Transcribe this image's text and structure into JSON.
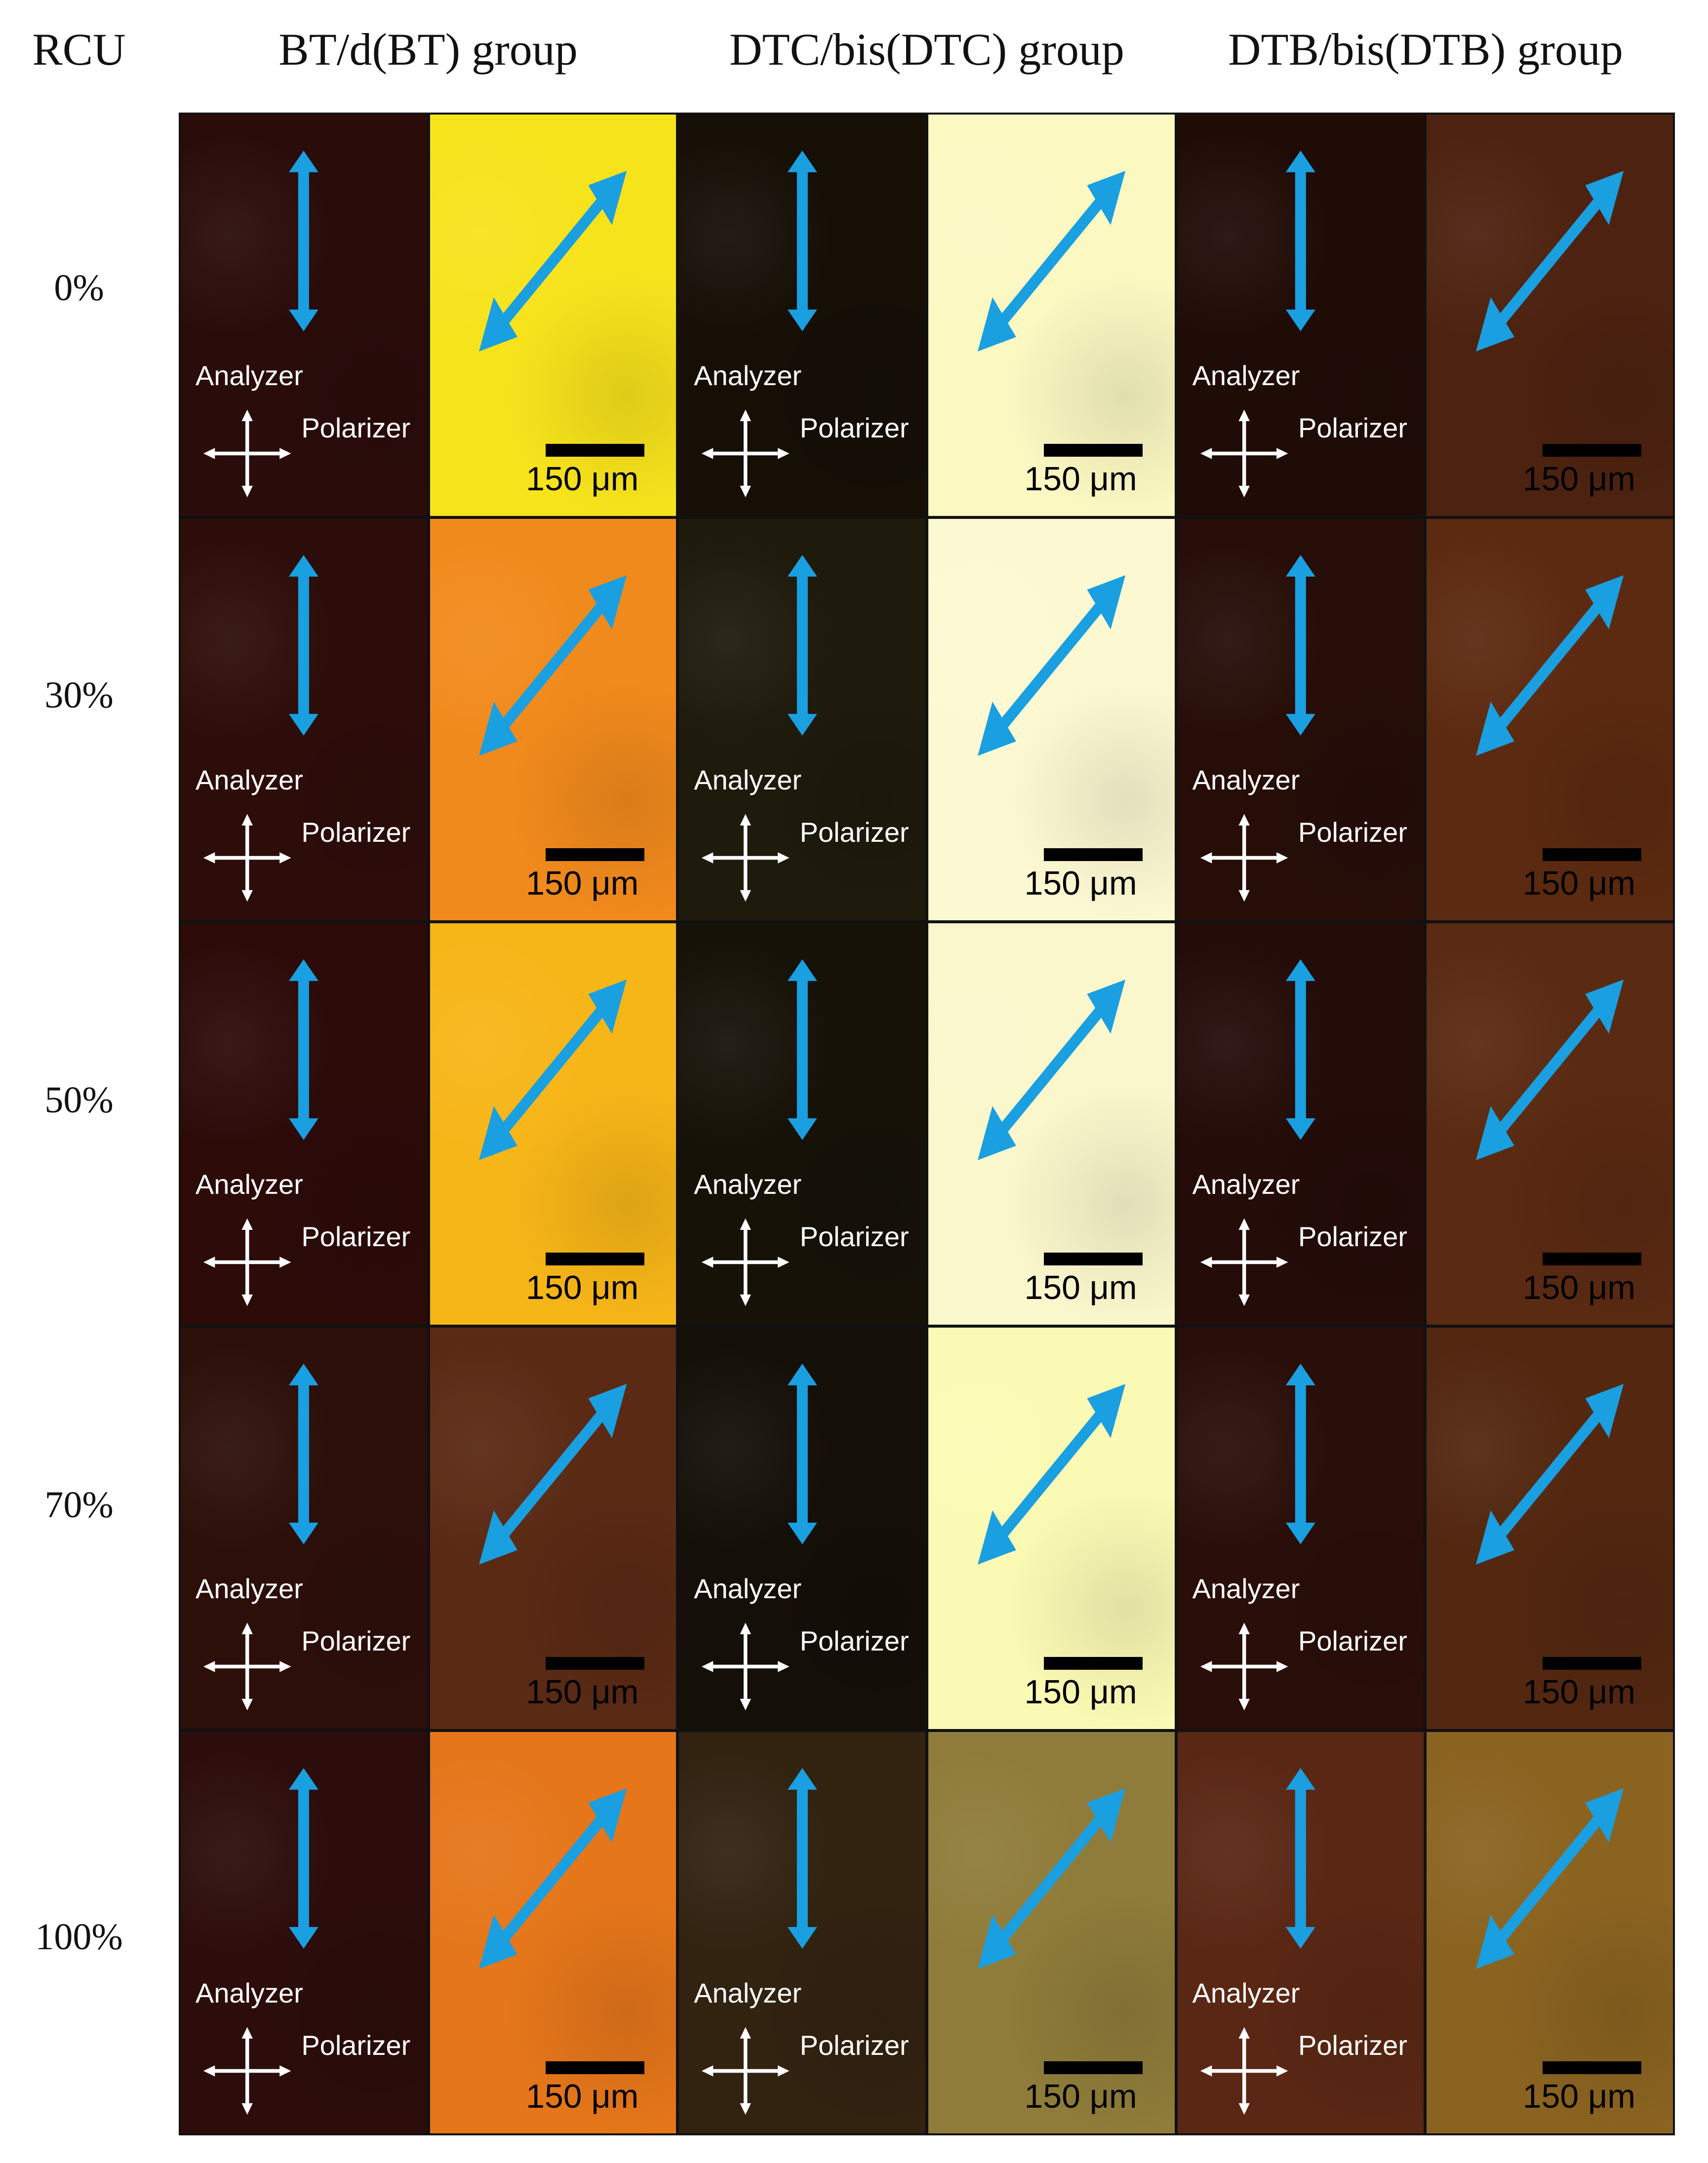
{
  "headers": {
    "rcu": "RCU",
    "groups": [
      "BT/d(BT) group",
      "DTC/bis(DTC) group",
      "DTB/bis(DTB) group"
    ]
  },
  "rows": [
    "0%",
    "30%",
    "50%",
    "70%",
    "100%"
  ],
  "panel_labels": {
    "analyzer": "Analyzer",
    "polarizer": "Polarizer",
    "scale": "150 μm"
  },
  "colors": {
    "arrow": "#1a9fe0",
    "cross": "#ffffff",
    "scalebar": "#000000"
  },
  "panels": [
    [
      {
        "crossed": "#2a0c0a",
        "parallel": "#f7e31c"
      },
      {
        "crossed": "#150f06",
        "parallel": "#fbf8c2"
      },
      {
        "crossed": "#200c07",
        "parallel": "#4d2210"
      }
    ],
    [
      {
        "crossed": "#2d0d0a",
        "parallel": "#f18a1c"
      },
      {
        "crossed": "#1e1a0c",
        "parallel": "#fcf9d2"
      },
      {
        "crossed": "#260d08",
        "parallel": "#5c2a10"
      }
    ],
    [
      {
        "crossed": "#2c0b09",
        "parallel": "#f7b618"
      },
      {
        "crossed": "#161208",
        "parallel": "#fbf7cc"
      },
      {
        "crossed": "#240c08",
        "parallel": "#5a2a12"
      }
    ],
    [
      {
        "crossed": "#2d0f0a",
        "parallel": "#5a2a14"
      },
      {
        "crossed": "#140f07",
        "parallel": "#fbfab4"
      },
      {
        "crossed": "#2a0e09",
        "parallel": "#532710"
      }
    ],
    [
      {
        "crossed": "#2c0d0b",
        "parallel": "#e5761a"
      },
      {
        "crossed": "#322210",
        "parallel": "#8f7c3a"
      },
      {
        "crossed": "#5a2714",
        "parallel": "#8a6320"
      }
    ]
  ]
}
